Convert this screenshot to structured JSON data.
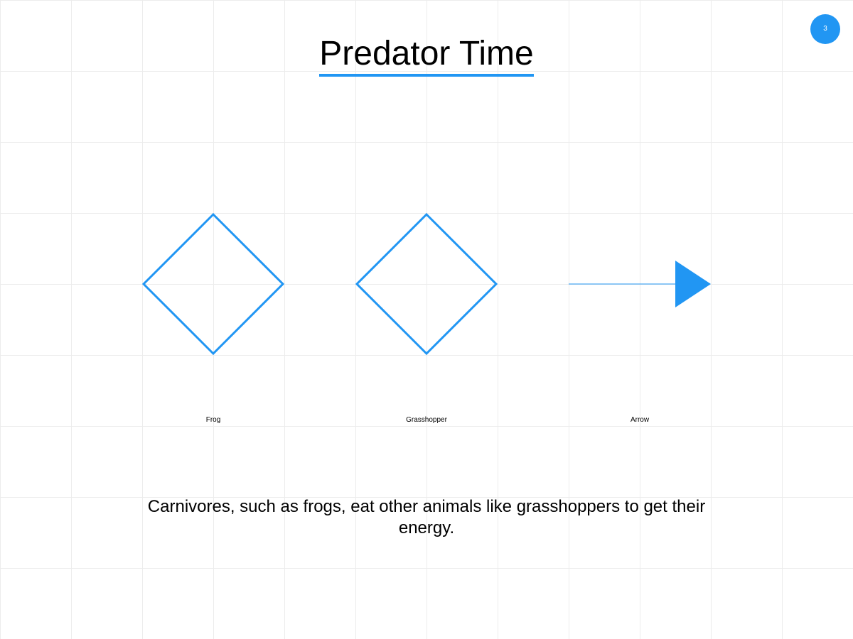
{
  "slide": {
    "title": "Predator Time",
    "page_number": "3",
    "caption": "Carnivores, such as frogs, eat other animals like grasshoppers to get their energy."
  },
  "diagram": {
    "nodes": [
      {
        "id": "frog",
        "label": "Frog",
        "shape": "diamond"
      },
      {
        "id": "grasshopper",
        "label": "Grasshopper",
        "shape": "diamond"
      },
      {
        "id": "arrow",
        "label": "Arrow",
        "shape": "arrow"
      }
    ],
    "accent_color": "#2196f3"
  }
}
